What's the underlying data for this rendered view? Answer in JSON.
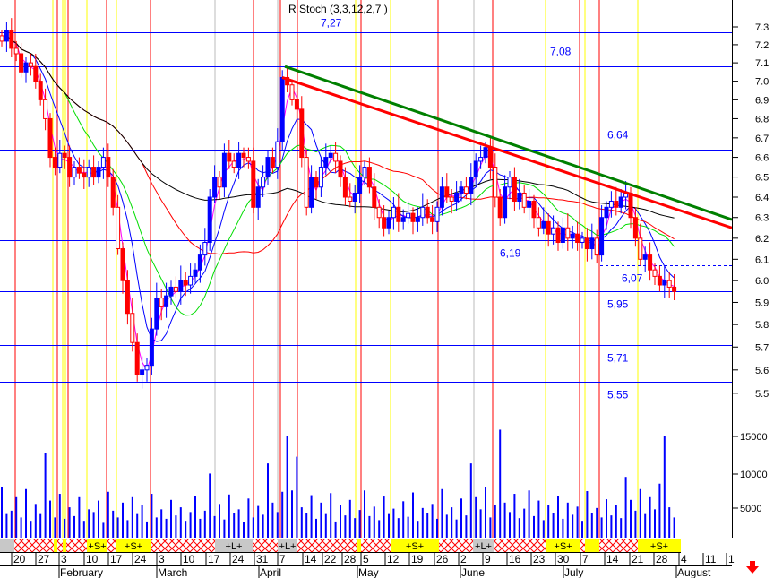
{
  "title": "R Stoch (3,3,12,2,7 )",
  "chart_data": {
    "type": "candlestick",
    "scale": "log",
    "ylim": [
      5.5,
      7.3
    ],
    "y_ticks": [
      "7.3",
      "7.2",
      "7.1",
      "7.0",
      "6.9",
      "6.8",
      "6.7",
      "6.6",
      "6.5",
      "6.4",
      "6.3",
      "6.2",
      "6.1",
      "6.0",
      "5.9",
      "5.8",
      "5.7",
      "5.6",
      "5.5"
    ],
    "volume_ticks": [
      "15000",
      "10000",
      "5000"
    ],
    "closes": [
      7.22,
      7.28,
      7.18,
      7.15,
      7.05,
      7.1,
      7.08,
      7.0,
      6.9,
      6.8,
      6.6,
      6.55,
      6.62,
      6.6,
      6.5,
      6.55,
      6.52,
      6.5,
      6.55,
      6.5,
      6.55,
      6.6,
      6.5,
      6.35,
      6.15,
      6.0,
      5.85,
      5.72,
      5.58,
      5.6,
      5.62,
      5.78,
      5.92,
      5.88,
      5.93,
      5.97,
      5.95,
      6.0,
      5.98,
      6.02,
      6.05,
      6.12,
      6.18,
      6.4,
      6.5,
      6.45,
      6.62,
      6.58,
      6.55,
      6.62,
      6.6,
      6.58,
      6.35,
      6.45,
      6.5,
      6.6,
      6.55,
      6.68,
      7.02,
      6.98,
      6.9,
      6.85,
      6.6,
      6.35,
      6.5,
      6.45,
      6.55,
      6.6,
      6.62,
      6.58,
      6.5,
      6.4,
      6.38,
      6.42,
      6.5,
      6.55,
      6.45,
      6.35,
      6.3,
      6.25,
      6.3,
      6.35,
      6.28,
      6.3,
      6.32,
      6.28,
      6.3,
      6.35,
      6.3,
      6.28,
      6.35,
      6.45,
      6.4,
      6.38,
      6.42,
      6.45,
      6.42,
      6.5,
      6.58,
      6.6,
      6.65,
      6.55,
      6.4,
      6.3,
      6.45,
      6.5,
      6.38,
      6.42,
      6.35,
      6.38,
      6.3,
      6.25,
      6.28,
      6.22,
      6.25,
      6.18,
      6.25,
      6.2,
      6.22,
      6.18,
      6.2,
      6.15,
      6.2,
      6.12,
      6.3,
      6.35,
      6.38,
      6.35,
      6.4,
      6.42,
      6.3,
      6.2,
      6.1,
      6.12,
      6.05,
      6.02,
      5.98,
      6.0,
      5.97,
      5.95
    ],
    "volumes": [
      7500,
      3500,
      4000,
      6000,
      3000,
      7200,
      2500,
      5000,
      3500,
      12500,
      5500,
      3000,
      6500,
      2800,
      4500,
      3200,
      6000,
      2500,
      4200,
      3800,
      5500,
      2200,
      6800,
      4000,
      3000,
      5200,
      2600,
      6000,
      3500,
      4800,
      2400,
      6500,
      3000,
      4200,
      2800,
      5600,
      3300,
      4500,
      2500,
      3800,
      6200,
      2800,
      4000,
      9500,
      3200,
      5000,
      2700,
      6400,
      3600,
      4200,
      2300,
      5800,
      3000,
      4700,
      3400,
      11000,
      5200,
      3800,
      6800,
      15000,
      7000,
      12000,
      4500,
      3600,
      6300,
      2800,
      5200,
      3500,
      6600,
      2400,
      4800,
      3300,
      5600,
      2900,
      4100,
      7000,
      3200,
      4600,
      2600,
      6100,
      3500,
      4300,
      2900,
      5400,
      3100,
      6700,
      2500,
      4400,
      3600,
      5000,
      2800,
      7200,
      3400,
      4500,
      2700,
      5800,
      3300,
      11000,
      6000,
      4200,
      7500,
      3000,
      4800,
      16000,
      5200,
      3800,
      6500,
      2900,
      4300,
      7000,
      3200,
      5500,
      2600,
      4900,
      3600,
      6200,
      2800,
      5200,
      3400,
      4600,
      2500,
      6900,
      3700,
      4400,
      3000,
      5700,
      3300,
      4800,
      2900,
      9000,
      5600,
      4000,
      7200,
      3500,
      6000,
      4200,
      8000,
      15000,
      4500,
      3000
    ],
    "levels": [
      {
        "value": 7.27,
        "label": "7,27"
      },
      {
        "value": 7.08,
        "label": "7,08"
      },
      {
        "value": 6.64,
        "label": "6,64"
      },
      {
        "value": 6.19,
        "label": "6,19"
      },
      {
        "value": 5.95,
        "label": "5,95"
      },
      {
        "value": 5.71,
        "label": "5,71"
      },
      {
        "value": 5.55,
        "label": "5,55"
      }
    ],
    "dashed_level": {
      "value": 6.07,
      "label": "6,07"
    },
    "trendlines": [
      {
        "color": "#008000",
        "from": 7.08,
        "to": 6.29
      },
      {
        "color": "#ff0000",
        "from": 7.02,
        "to": 6.25
      }
    ],
    "day_labels": [
      "20",
      "27",
      "3",
      "10",
      "17",
      "24",
      "3",
      "10",
      "17",
      "24",
      "31",
      "7",
      "14",
      "22",
      "28",
      "5",
      "12",
      "19",
      "26",
      "2",
      "9",
      "16",
      "23",
      "30",
      "7",
      "14",
      "21",
      "28",
      "4",
      "11",
      "1"
    ],
    "month_labels": [
      "February",
      "March",
      "April",
      "May",
      "June",
      "July",
      "August"
    ],
    "signals": [
      {
        "type": "gray",
        "label": ""
      },
      {
        "type": "hatch",
        "label": ""
      },
      {
        "type": "yellow",
        "label": ""
      },
      {
        "type": "hatch",
        "label": ""
      },
      {
        "type": "yellow",
        "label": ""
      },
      {
        "type": "hatch",
        "label": ""
      },
      {
        "type": "yellow",
        "label": "+S+"
      },
      {
        "type": "hatch",
        "label": ""
      },
      {
        "type": "yellow",
        "label": "+S+"
      },
      {
        "type": "hatch",
        "label": ""
      },
      {
        "type": "gray",
        "label": "+L+"
      },
      {
        "type": "hatch",
        "label": ""
      },
      {
        "type": "gray",
        "label": "+L+"
      },
      {
        "type": "hatch",
        "label": ""
      },
      {
        "type": "yellow",
        "label": ""
      },
      {
        "type": "hatch",
        "label": ""
      },
      {
        "type": "yellow",
        "label": "+S+"
      },
      {
        "type": "hatch",
        "label": ""
      },
      {
        "type": "gray",
        "label": "+L+"
      },
      {
        "type": "hatch",
        "label": ""
      },
      {
        "type": "yellow",
        "label": "+S+"
      },
      {
        "type": "hatch",
        "label": ""
      },
      {
        "type": "yellow",
        "label": ""
      },
      {
        "type": "hatch",
        "label": ""
      },
      {
        "type": "yellow",
        "label": "+S+"
      }
    ],
    "colors": {
      "up": "#0000ff",
      "down": "#ff0000",
      "level": "#0000ff",
      "ma_fast": "#ff00ff",
      "ma_short": "#0000ff",
      "ma_mid": "#00dd00",
      "ma_long": "#ff0000",
      "ma_slow": "#000000",
      "signal_yellow": "#ffff00",
      "signal_gray": "#c8c8c8"
    },
    "moving_average_periods": [
      3,
      7,
      14,
      30,
      60
    ]
  }
}
